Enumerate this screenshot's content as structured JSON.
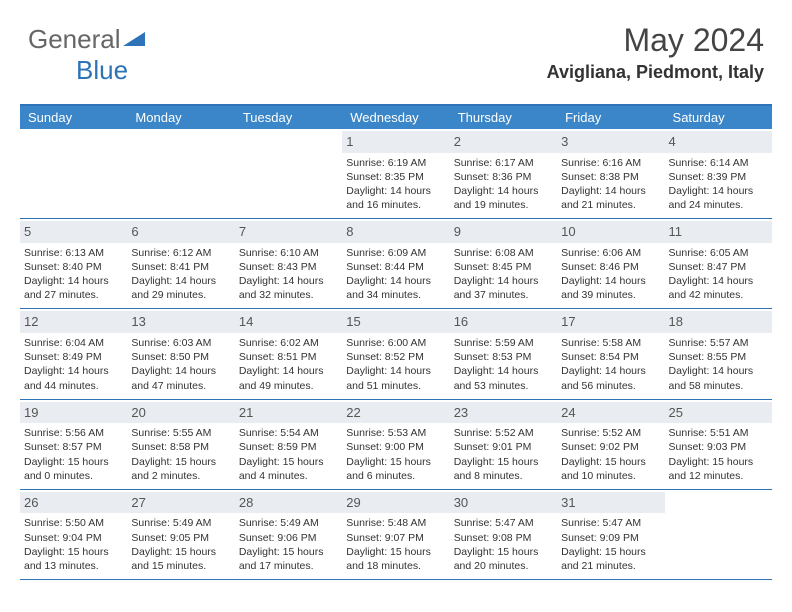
{
  "logo": {
    "text1": "General",
    "text2": "Blue"
  },
  "title": "May 2024",
  "subtitle": "Avigliana, Piedmont, Italy",
  "colors": {
    "header_bg": "#3a86c8",
    "header_border": "#2e73b8",
    "daynum_bg": "#e9edf1",
    "text": "#333333",
    "logo_gray": "#666666",
    "logo_blue": "#2e73b8"
  },
  "weekdays": [
    "Sunday",
    "Monday",
    "Tuesday",
    "Wednesday",
    "Thursday",
    "Friday",
    "Saturday"
  ],
  "weeks": [
    [
      {},
      {},
      {},
      {
        "num": "1",
        "sunrise": "Sunrise: 6:19 AM",
        "sunset": "Sunset: 8:35 PM",
        "day1": "Daylight: 14 hours",
        "day2": "and 16 minutes."
      },
      {
        "num": "2",
        "sunrise": "Sunrise: 6:17 AM",
        "sunset": "Sunset: 8:36 PM",
        "day1": "Daylight: 14 hours",
        "day2": "and 19 minutes."
      },
      {
        "num": "3",
        "sunrise": "Sunrise: 6:16 AM",
        "sunset": "Sunset: 8:38 PM",
        "day1": "Daylight: 14 hours",
        "day2": "and 21 minutes."
      },
      {
        "num": "4",
        "sunrise": "Sunrise: 6:14 AM",
        "sunset": "Sunset: 8:39 PM",
        "day1": "Daylight: 14 hours",
        "day2": "and 24 minutes."
      }
    ],
    [
      {
        "num": "5",
        "sunrise": "Sunrise: 6:13 AM",
        "sunset": "Sunset: 8:40 PM",
        "day1": "Daylight: 14 hours",
        "day2": "and 27 minutes."
      },
      {
        "num": "6",
        "sunrise": "Sunrise: 6:12 AM",
        "sunset": "Sunset: 8:41 PM",
        "day1": "Daylight: 14 hours",
        "day2": "and 29 minutes."
      },
      {
        "num": "7",
        "sunrise": "Sunrise: 6:10 AM",
        "sunset": "Sunset: 8:43 PM",
        "day1": "Daylight: 14 hours",
        "day2": "and 32 minutes."
      },
      {
        "num": "8",
        "sunrise": "Sunrise: 6:09 AM",
        "sunset": "Sunset: 8:44 PM",
        "day1": "Daylight: 14 hours",
        "day2": "and 34 minutes."
      },
      {
        "num": "9",
        "sunrise": "Sunrise: 6:08 AM",
        "sunset": "Sunset: 8:45 PM",
        "day1": "Daylight: 14 hours",
        "day2": "and 37 minutes."
      },
      {
        "num": "10",
        "sunrise": "Sunrise: 6:06 AM",
        "sunset": "Sunset: 8:46 PM",
        "day1": "Daylight: 14 hours",
        "day2": "and 39 minutes."
      },
      {
        "num": "11",
        "sunrise": "Sunrise: 6:05 AM",
        "sunset": "Sunset: 8:47 PM",
        "day1": "Daylight: 14 hours",
        "day2": "and 42 minutes."
      }
    ],
    [
      {
        "num": "12",
        "sunrise": "Sunrise: 6:04 AM",
        "sunset": "Sunset: 8:49 PM",
        "day1": "Daylight: 14 hours",
        "day2": "and 44 minutes."
      },
      {
        "num": "13",
        "sunrise": "Sunrise: 6:03 AM",
        "sunset": "Sunset: 8:50 PM",
        "day1": "Daylight: 14 hours",
        "day2": "and 47 minutes."
      },
      {
        "num": "14",
        "sunrise": "Sunrise: 6:02 AM",
        "sunset": "Sunset: 8:51 PM",
        "day1": "Daylight: 14 hours",
        "day2": "and 49 minutes."
      },
      {
        "num": "15",
        "sunrise": "Sunrise: 6:00 AM",
        "sunset": "Sunset: 8:52 PM",
        "day1": "Daylight: 14 hours",
        "day2": "and 51 minutes."
      },
      {
        "num": "16",
        "sunrise": "Sunrise: 5:59 AM",
        "sunset": "Sunset: 8:53 PM",
        "day1": "Daylight: 14 hours",
        "day2": "and 53 minutes."
      },
      {
        "num": "17",
        "sunrise": "Sunrise: 5:58 AM",
        "sunset": "Sunset: 8:54 PM",
        "day1": "Daylight: 14 hours",
        "day2": "and 56 minutes."
      },
      {
        "num": "18",
        "sunrise": "Sunrise: 5:57 AM",
        "sunset": "Sunset: 8:55 PM",
        "day1": "Daylight: 14 hours",
        "day2": "and 58 minutes."
      }
    ],
    [
      {
        "num": "19",
        "sunrise": "Sunrise: 5:56 AM",
        "sunset": "Sunset: 8:57 PM",
        "day1": "Daylight: 15 hours",
        "day2": "and 0 minutes."
      },
      {
        "num": "20",
        "sunrise": "Sunrise: 5:55 AM",
        "sunset": "Sunset: 8:58 PM",
        "day1": "Daylight: 15 hours",
        "day2": "and 2 minutes."
      },
      {
        "num": "21",
        "sunrise": "Sunrise: 5:54 AM",
        "sunset": "Sunset: 8:59 PM",
        "day1": "Daylight: 15 hours",
        "day2": "and 4 minutes."
      },
      {
        "num": "22",
        "sunrise": "Sunrise: 5:53 AM",
        "sunset": "Sunset: 9:00 PM",
        "day1": "Daylight: 15 hours",
        "day2": "and 6 minutes."
      },
      {
        "num": "23",
        "sunrise": "Sunrise: 5:52 AM",
        "sunset": "Sunset: 9:01 PM",
        "day1": "Daylight: 15 hours",
        "day2": "and 8 minutes."
      },
      {
        "num": "24",
        "sunrise": "Sunrise: 5:52 AM",
        "sunset": "Sunset: 9:02 PM",
        "day1": "Daylight: 15 hours",
        "day2": "and 10 minutes."
      },
      {
        "num": "25",
        "sunrise": "Sunrise: 5:51 AM",
        "sunset": "Sunset: 9:03 PM",
        "day1": "Daylight: 15 hours",
        "day2": "and 12 minutes."
      }
    ],
    [
      {
        "num": "26",
        "sunrise": "Sunrise: 5:50 AM",
        "sunset": "Sunset: 9:04 PM",
        "day1": "Daylight: 15 hours",
        "day2": "and 13 minutes."
      },
      {
        "num": "27",
        "sunrise": "Sunrise: 5:49 AM",
        "sunset": "Sunset: 9:05 PM",
        "day1": "Daylight: 15 hours",
        "day2": "and 15 minutes."
      },
      {
        "num": "28",
        "sunrise": "Sunrise: 5:49 AM",
        "sunset": "Sunset: 9:06 PM",
        "day1": "Daylight: 15 hours",
        "day2": "and 17 minutes."
      },
      {
        "num": "29",
        "sunrise": "Sunrise: 5:48 AM",
        "sunset": "Sunset: 9:07 PM",
        "day1": "Daylight: 15 hours",
        "day2": "and 18 minutes."
      },
      {
        "num": "30",
        "sunrise": "Sunrise: 5:47 AM",
        "sunset": "Sunset: 9:08 PM",
        "day1": "Daylight: 15 hours",
        "day2": "and 20 minutes."
      },
      {
        "num": "31",
        "sunrise": "Sunrise: 5:47 AM",
        "sunset": "Sunset: 9:09 PM",
        "day1": "Daylight: 15 hours",
        "day2": "and 21 minutes."
      },
      {}
    ]
  ]
}
